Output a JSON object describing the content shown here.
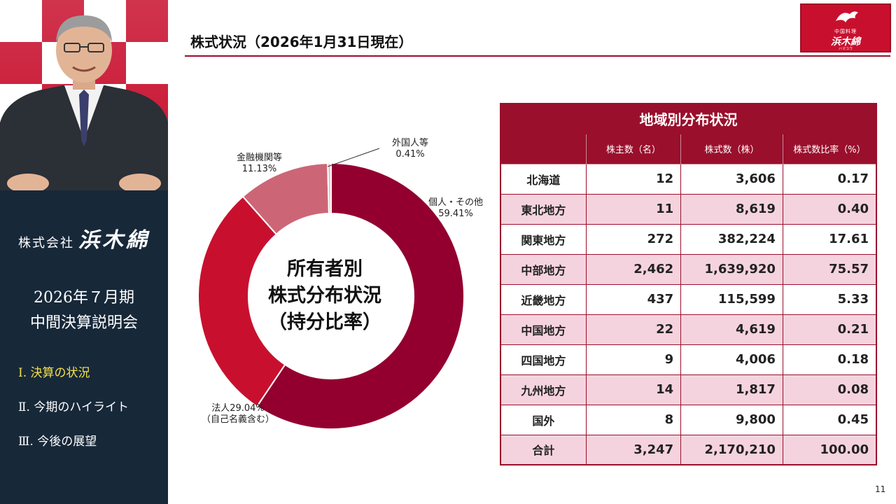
{
  "sidebar": {
    "company_prefix": "株式会社",
    "company_brand": "浜木綿",
    "meeting_title_line1": "2026年７月期",
    "meeting_title_line2": "中間決算説明会",
    "agenda": [
      {
        "label": "Ⅰ. 決算の状況",
        "active": true
      },
      {
        "label": "Ⅱ. 今期のハイライト",
        "active": false
      },
      {
        "label": "Ⅲ. 今後の展望",
        "active": false
      }
    ]
  },
  "header": {
    "title": "株式状況（2026年1月31日現在）",
    "logo": {
      "small": "中国料理",
      "brand": "浜木綿",
      "tiny": "ハマユウ"
    }
  },
  "colors": {
    "accent": "#9a0f2c",
    "individual": "#930030",
    "corporate": "#c8102e",
    "financial": "#cc6677",
    "foreign": "#e8c0cc",
    "row_alt": "#f5d3de"
  },
  "chart_data": {
    "type": "pie",
    "center_label": [
      "所有者別",
      "株式分布状況",
      "（持分比率）"
    ],
    "slices": [
      {
        "name": "個人・その他",
        "value": 59.41,
        "value_label": "59.41%",
        "color": "#930030"
      },
      {
        "name": "法人",
        "value": 29.04,
        "value_label": "29.04%",
        "note": "（自己名義含む）",
        "color": "#c8102e"
      },
      {
        "name": "金融機関等",
        "value": 11.13,
        "value_label": "11.13%",
        "color": "#cc6677"
      },
      {
        "name": "外国人等",
        "value": 0.41,
        "value_label": "0.41%",
        "color": "#e8c0cc"
      }
    ]
  },
  "table": {
    "caption": "地域別分布状況",
    "headers": [
      "",
      "株主数（名）",
      "株式数（株）",
      "株式数比率（%）"
    ],
    "rows": [
      {
        "region": "北海道",
        "holders": "12",
        "shares": "3,606",
        "ratio": "0.17"
      },
      {
        "region": "東北地方",
        "holders": "11",
        "shares": "8,619",
        "ratio": "0.40"
      },
      {
        "region": "関東地方",
        "holders": "272",
        "shares": "382,224",
        "ratio": "17.61"
      },
      {
        "region": "中部地方",
        "holders": "2,462",
        "shares": "1,639,920",
        "ratio": "75.57"
      },
      {
        "region": "近畿地方",
        "holders": "437",
        "shares": "115,599",
        "ratio": "5.33"
      },
      {
        "region": "中国地方",
        "holders": "22",
        "shares": "4,619",
        "ratio": "0.21"
      },
      {
        "region": "四国地方",
        "holders": "9",
        "shares": "4,006",
        "ratio": "0.18"
      },
      {
        "region": "九州地方",
        "holders": "14",
        "shares": "1,817",
        "ratio": "0.08"
      },
      {
        "region": "国外",
        "holders": "8",
        "shares": "9,800",
        "ratio": "0.45"
      },
      {
        "region": "合計",
        "holders": "3,247",
        "shares": "2,170,210",
        "ratio": "100.00"
      }
    ]
  },
  "page_number": "11"
}
